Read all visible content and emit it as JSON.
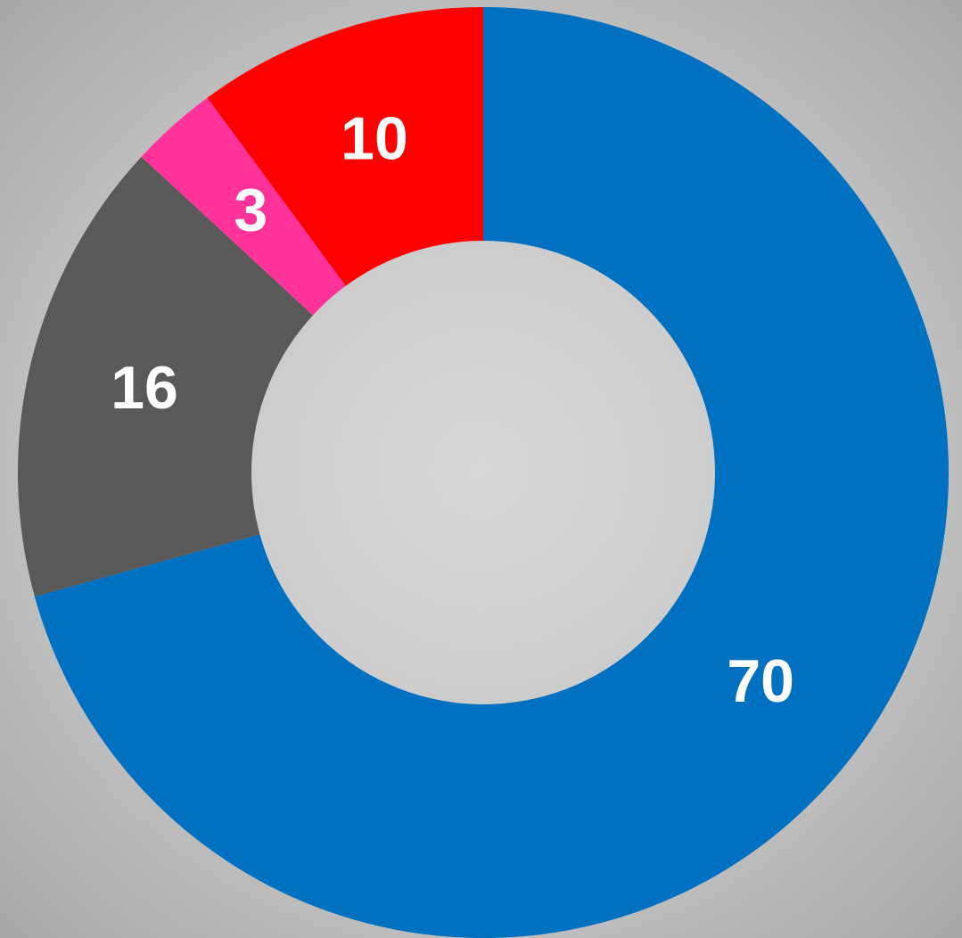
{
  "chart_data": {
    "type": "donut",
    "values": [
      70,
      16,
      3,
      10
    ],
    "colors": [
      "#0070c0",
      "#595959",
      "#ff3399",
      "#ff0000"
    ]
  }
}
